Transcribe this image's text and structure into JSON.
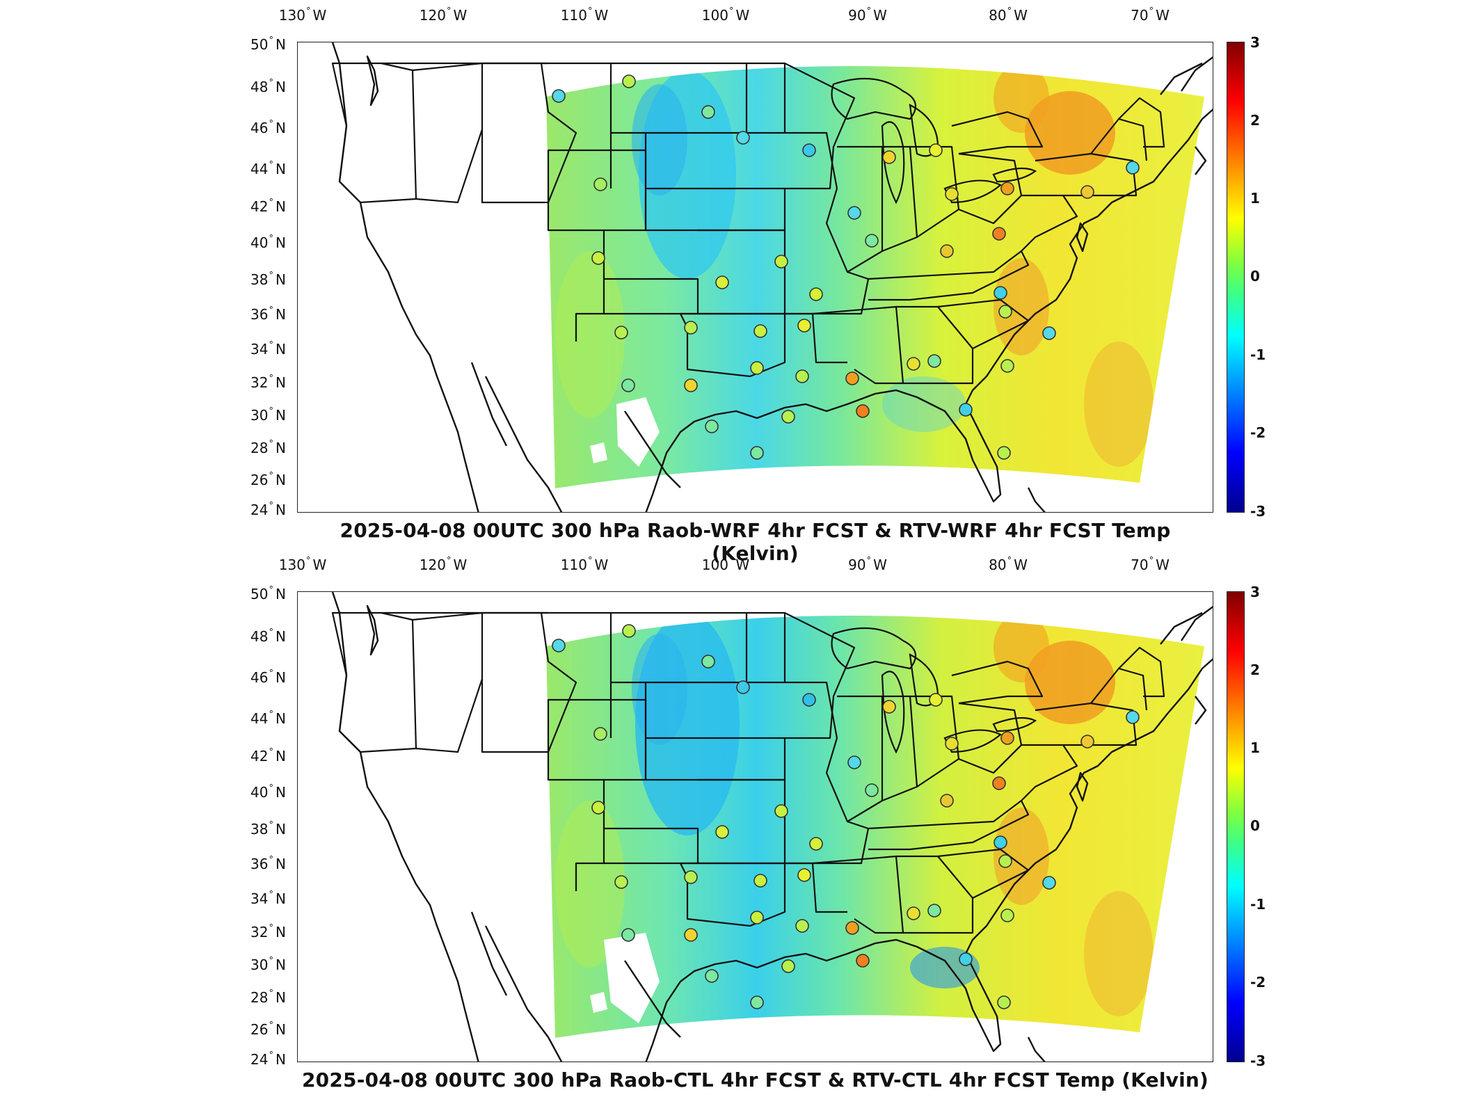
{
  "map_axes": {
    "longitude_labels": [
      "130",
      "120",
      "110",
      "100",
      "90",
      "80",
      "70"
    ],
    "longitude_hemisphere": "W",
    "latitude_labels": [
      "50",
      "48",
      "46",
      "44",
      "42",
      "40",
      "38",
      "36",
      "34",
      "32",
      "30",
      "28",
      "26",
      "24"
    ],
    "latitude_hemisphere": "N",
    "degree_symbol": "°"
  },
  "panels": [
    {
      "id": "top",
      "title": "2025-04-08 00UTC 300 hPa Raob-WRF 4hr FCST & RTV-WRF 4hr FCST Temp (Kelvin)"
    },
    {
      "id": "bottom",
      "title": "2025-04-08 00UTC 300 hPa Raob-CTL 4hr FCST & RTV-CTL 4hr FCST Temp (Kelvin)"
    }
  ],
  "colorbar": {
    "ticks": [
      "3",
      "2",
      "1",
      "0",
      "-1",
      "-2",
      "-3"
    ],
    "range": [
      -3,
      3
    ],
    "colors": [
      "#00008f",
      "#0000ff",
      "#00ffff",
      "#80ff40",
      "#ffff00",
      "#ff8000",
      "#ff0000",
      "#800000"
    ]
  }
}
